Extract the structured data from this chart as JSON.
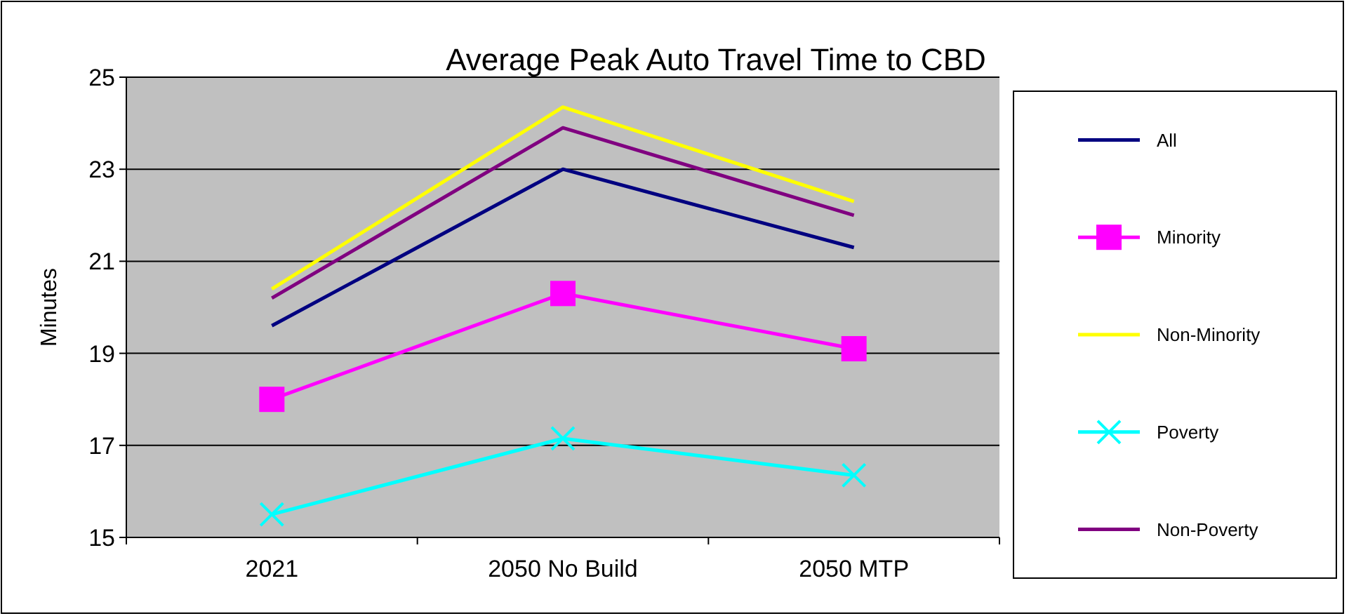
{
  "chart_data": {
    "type": "line",
    "title": "Average Peak Auto Travel Time to CBD",
    "ylabel": "Minutes",
    "categories": [
      "2021",
      "2050 No Build",
      "2050 MTP"
    ],
    "ylim": [
      15,
      25
    ],
    "yticks": [
      15,
      17,
      19,
      21,
      23,
      25
    ],
    "grid": "y",
    "legend": "right",
    "series": [
      {
        "name": "All",
        "color": "#000080",
        "values": [
          19.6,
          23.0,
          21.3
        ],
        "marker": "none"
      },
      {
        "name": "Minority",
        "color": "#ff00ff",
        "values": [
          18.0,
          20.3,
          19.1
        ],
        "marker": "square"
      },
      {
        "name": "Non-Minority",
        "color": "#ffff00",
        "values": [
          20.4,
          24.35,
          22.3
        ],
        "marker": "none"
      },
      {
        "name": "Poverty",
        "color": "#00ffff",
        "values": [
          15.5,
          17.15,
          16.35
        ],
        "marker": "cross"
      },
      {
        "name": "Non-Poverty",
        "color": "#800080",
        "values": [
          20.2,
          23.9,
          22.0
        ],
        "marker": "none"
      }
    ]
  }
}
